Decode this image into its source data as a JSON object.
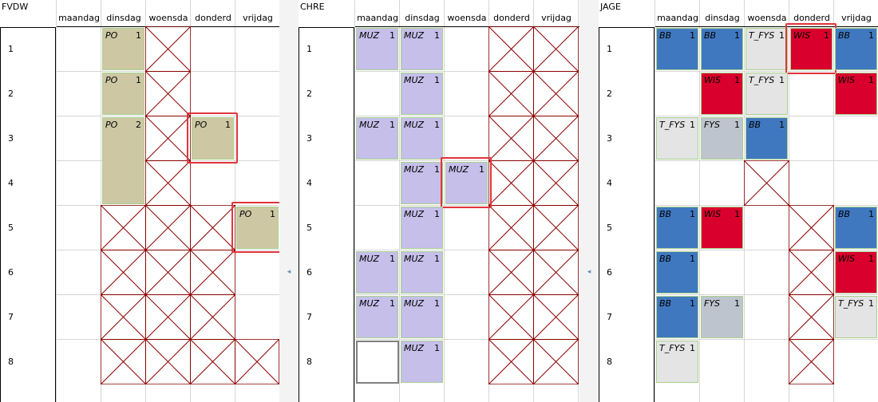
{
  "day_headers": [
    "maandag",
    "dinsdag",
    "woensda",
    "donderd",
    "vrijdag"
  ],
  "row_labels": [
    "1",
    "2",
    "3",
    "4",
    "5",
    "6",
    "7",
    "8"
  ],
  "collapse_arrow": "◂",
  "colors": {
    "po": "#cdc8a3",
    "muz": "#c5bfea",
    "bb": "#4078c0",
    "wis": "#d9002d",
    "t_fys": "#e4e4e4",
    "fys": "#bec4ce",
    "blocked_line": "#8b0000",
    "highlight": "#e0353b"
  },
  "panels": [
    {
      "title": "FVDW",
      "lessons": [
        {
          "subject": "PO",
          "count": "1",
          "day": 1,
          "period": 1,
          "span": 1,
          "color": "po"
        },
        {
          "subject": "PO",
          "count": "1",
          "day": 1,
          "period": 2,
          "span": 1,
          "color": "po"
        },
        {
          "subject": "PO",
          "count": "2",
          "day": 1,
          "period": 3,
          "span": 2,
          "color": "po"
        },
        {
          "subject": "PO",
          "count": "1",
          "day": 3,
          "period": 3,
          "span": 1,
          "color": "po",
          "highlight": true
        },
        {
          "subject": "PO",
          "count": "1",
          "day": 4,
          "period": 5,
          "span": 1,
          "color": "po",
          "highlight": true
        }
      ],
      "blocked": [
        {
          "day": 2,
          "period": 1
        },
        {
          "day": 2,
          "period": 2
        },
        {
          "day": 2,
          "period": 3
        },
        {
          "day": 2,
          "period": 4
        },
        {
          "day": 1,
          "period": 5
        },
        {
          "day": 2,
          "period": 5
        },
        {
          "day": 3,
          "period": 5
        },
        {
          "day": 1,
          "period": 6
        },
        {
          "day": 2,
          "period": 6
        },
        {
          "day": 3,
          "period": 6
        },
        {
          "day": 1,
          "period": 7
        },
        {
          "day": 2,
          "period": 7
        },
        {
          "day": 3,
          "period": 7
        },
        {
          "day": 1,
          "period": 8
        },
        {
          "day": 2,
          "period": 8
        },
        {
          "day": 3,
          "period": 8
        },
        {
          "day": 4,
          "period": 8
        }
      ],
      "empty_selected": []
    },
    {
      "title": "CHRE",
      "lessons": [
        {
          "subject": "MUZ",
          "count": "1",
          "day": 0,
          "period": 1,
          "span": 1,
          "color": "muz"
        },
        {
          "subject": "MUZ",
          "count": "1",
          "day": 1,
          "period": 1,
          "span": 1,
          "color": "muz"
        },
        {
          "subject": "MUZ",
          "count": "1",
          "day": 1,
          "period": 2,
          "span": 1,
          "color": "muz"
        },
        {
          "subject": "MUZ",
          "count": "1",
          "day": 0,
          "period": 3,
          "span": 1,
          "color": "muz"
        },
        {
          "subject": "MUZ",
          "count": "1",
          "day": 1,
          "period": 3,
          "span": 1,
          "color": "muz"
        },
        {
          "subject": "MUZ",
          "count": "1",
          "day": 1,
          "period": 4,
          "span": 1,
          "color": "muz"
        },
        {
          "subject": "MUZ",
          "count": "1",
          "day": 2,
          "period": 4,
          "span": 1,
          "color": "muz",
          "highlight": true
        },
        {
          "subject": "MUZ",
          "count": "1",
          "day": 1,
          "period": 5,
          "span": 1,
          "color": "muz"
        },
        {
          "subject": "MUZ",
          "count": "1",
          "day": 0,
          "period": 6,
          "span": 1,
          "color": "muz"
        },
        {
          "subject": "MUZ",
          "count": "1",
          "day": 1,
          "period": 6,
          "span": 1,
          "color": "muz"
        },
        {
          "subject": "MUZ",
          "count": "1",
          "day": 0,
          "period": 7,
          "span": 1,
          "color": "muz"
        },
        {
          "subject": "MUZ",
          "count": "1",
          "day": 1,
          "period": 7,
          "span": 1,
          "color": "muz"
        },
        {
          "subject": "MUZ",
          "count": "1",
          "day": 1,
          "period": 8,
          "span": 1,
          "color": "muz"
        }
      ],
      "blocked": [
        {
          "day": 3,
          "period": 1
        },
        {
          "day": 4,
          "period": 1
        },
        {
          "day": 3,
          "period": 2
        },
        {
          "day": 4,
          "period": 2
        },
        {
          "day": 3,
          "period": 3
        },
        {
          "day": 4,
          "period": 3
        },
        {
          "day": 3,
          "period": 4
        },
        {
          "day": 4,
          "period": 4
        },
        {
          "day": 3,
          "period": 5
        },
        {
          "day": 4,
          "period": 5
        },
        {
          "day": 3,
          "period": 6
        },
        {
          "day": 4,
          "period": 6
        },
        {
          "day": 3,
          "period": 7
        },
        {
          "day": 4,
          "period": 7
        },
        {
          "day": 3,
          "period": 8
        },
        {
          "day": 4,
          "period": 8
        }
      ],
      "empty_selected": [
        {
          "day": 0,
          "period": 8
        }
      ]
    },
    {
      "title": "JAGE",
      "lessons": [
        {
          "subject": "BB",
          "count": "1",
          "day": 0,
          "period": 1,
          "span": 1,
          "color": "bb"
        },
        {
          "subject": "BB",
          "count": "1",
          "day": 1,
          "period": 1,
          "span": 1,
          "color": "bb"
        },
        {
          "subject": "T_FYS",
          "count": "1",
          "day": 2,
          "period": 1,
          "span": 1,
          "color": "t_fys"
        },
        {
          "subject": "WIS",
          "count": "1",
          "day": 3,
          "period": 1,
          "span": 1,
          "color": "wis",
          "highlight": true
        },
        {
          "subject": "BB",
          "count": "1",
          "day": 4,
          "period": 1,
          "span": 1,
          "color": "bb"
        },
        {
          "subject": "WIS",
          "count": "1",
          "day": 1,
          "period": 2,
          "span": 1,
          "color": "wis"
        },
        {
          "subject": "T_FYS",
          "count": "1",
          "day": 2,
          "period": 2,
          "span": 1,
          "color": "t_fys"
        },
        {
          "subject": "WIS",
          "count": "1",
          "day": 4,
          "period": 2,
          "span": 1,
          "color": "wis"
        },
        {
          "subject": "T_FYS",
          "count": "1",
          "day": 0,
          "period": 3,
          "span": 1,
          "color": "t_fys"
        },
        {
          "subject": "FYS",
          "count": "1",
          "day": 1,
          "period": 3,
          "span": 1,
          "color": "fys"
        },
        {
          "subject": "BB",
          "count": "1",
          "day": 2,
          "period": 3,
          "span": 1,
          "color": "bb"
        },
        {
          "subject": "BB",
          "count": "1",
          "day": 0,
          "period": 5,
          "span": 1,
          "color": "bb"
        },
        {
          "subject": "WIS",
          "count": "1",
          "day": 1,
          "period": 5,
          "span": 1,
          "color": "wis"
        },
        {
          "subject": "BB",
          "count": "1",
          "day": 4,
          "period": 5,
          "span": 1,
          "color": "bb"
        },
        {
          "subject": "BB",
          "count": "1",
          "day": 0,
          "period": 6,
          "span": 1,
          "color": "bb"
        },
        {
          "subject": "WIS",
          "count": "1",
          "day": 4,
          "period": 6,
          "span": 1,
          "color": "wis"
        },
        {
          "subject": "BB",
          "count": "1",
          "day": 0,
          "period": 7,
          "span": 1,
          "color": "bb"
        },
        {
          "subject": "FYS",
          "count": "1",
          "day": 1,
          "period": 7,
          "span": 1,
          "color": "fys"
        },
        {
          "subject": "T_FYS",
          "count": "1",
          "day": 4,
          "period": 7,
          "span": 1,
          "color": "t_fys"
        },
        {
          "subject": "T_FYS",
          "count": "1",
          "day": 0,
          "period": 8,
          "span": 1,
          "color": "t_fys"
        }
      ],
      "blocked": [
        {
          "day": 2,
          "period": 4
        },
        {
          "day": 3,
          "period": 5
        },
        {
          "day": 3,
          "period": 6
        },
        {
          "day": 3,
          "period": 7
        },
        {
          "day": 3,
          "period": 8
        }
      ],
      "empty_selected": []
    }
  ]
}
